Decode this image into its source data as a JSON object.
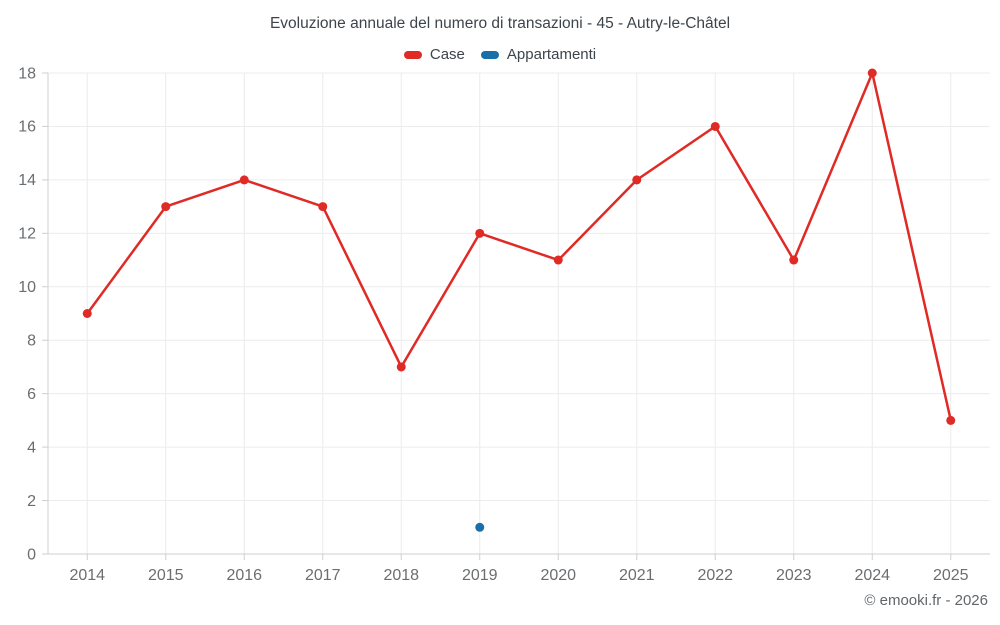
{
  "title": "Evoluzione annuale del numero di transazioni - 45 - Autry-le-Châtel",
  "footer": "© emooki.fr - 2026",
  "chart_data": {
    "type": "line",
    "categories": [
      "2014",
      "2015",
      "2016",
      "2017",
      "2018",
      "2019",
      "2020",
      "2021",
      "2022",
      "2023",
      "2024",
      "2025"
    ],
    "series": [
      {
        "name": "Case",
        "color": "#df2a25",
        "values": [
          9,
          13,
          14,
          13,
          7,
          12,
          11,
          14,
          16,
          11,
          18,
          5
        ]
      },
      {
        "name": "Appartamenti",
        "color": "#1a6fa8",
        "values": [
          null,
          null,
          null,
          null,
          null,
          1,
          null,
          null,
          null,
          null,
          null,
          null
        ]
      }
    ],
    "xlabel": "",
    "ylabel": "",
    "ylim": [
      0,
      18
    ],
    "ytick_step": 2,
    "grid": true,
    "legend_position": "top",
    "styles": {
      "grid_color": "#ececec",
      "axis_color": "#cfcfcf",
      "tick_label_color": "#6a6e71"
    }
  }
}
